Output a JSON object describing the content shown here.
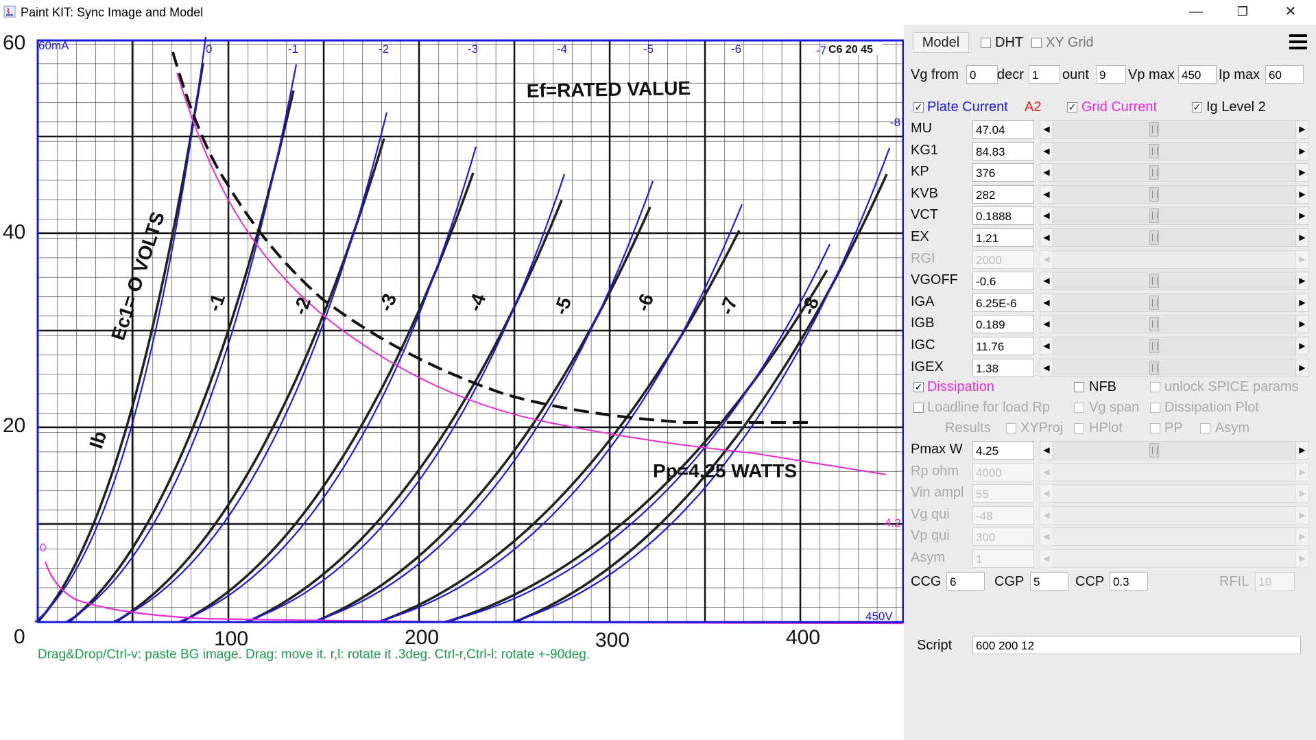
{
  "window": {
    "title": "Paint KIT: Sync Image and Model",
    "minimize": "—",
    "restore": "❐",
    "close": "✕"
  },
  "plot": {
    "y_ticks": [
      "60",
      "40",
      "20",
      "0"
    ],
    "x_ticks": [
      "100",
      "200",
      "300",
      "400"
    ],
    "image_texts": {
      "ef": "Ef=RATED  VALUE",
      "ec": "Ec1= O VOLTS",
      "ib": "Ib",
      "pp": "Pp=4.25  WATTS",
      "tube": "C6 20 45",
      "grid_labels": [
        "-1",
        "-2",
        "-3",
        "-4",
        "-5",
        "-6",
        "-7",
        "-8"
      ]
    },
    "overlay": {
      "top_left": "60mA",
      "curve_labels": [
        "0",
        "-1",
        "-2",
        "-3",
        "-4",
        "-5",
        "-6",
        "-7",
        "-8"
      ],
      "dissipation_label": "4.2",
      "vp_label": "450V",
      "zero_label": "0"
    },
    "hint": "Drag&Drop/Ctrl-v: paste BG image. Drag: move it. r,l: rotate it .3deg. Ctrl-r,Ctrl-l: rotate +-90deg.",
    "colors": {
      "image_curve": "#222222",
      "model_curve": "#1a1ad6",
      "dissipation": "#e52ad6",
      "hint": "#1a9a4a"
    }
  },
  "toolbar": {
    "model_button": "Model",
    "dht": "DHT",
    "dht_checked": false,
    "xy_grid": "XY Grid",
    "xy_grid_checked": false
  },
  "vg_row": {
    "vg_from_label": "Vg from",
    "vg_from": "0",
    "decr_label": "decr",
    "decr": "1",
    "count_label": "ount",
    "count": "9",
    "vp_max_label": "Vp max",
    "vp_max": "450",
    "ip_max_label": "Ip max",
    "ip_max": "60"
  },
  "plot_options": {
    "plate_current": "Plate Current",
    "plate_current_checked": true,
    "a2": "A2",
    "grid_current": "Grid Current",
    "grid_current_checked": true,
    "ig_level": "Ig Level 2",
    "ig_level_checked": true
  },
  "params": [
    {
      "name": "MU",
      "value": "47.04",
      "enabled": true
    },
    {
      "name": "KG1",
      "value": "84.83",
      "enabled": true
    },
    {
      "name": "KP",
      "value": "376",
      "enabled": true
    },
    {
      "name": "KVB",
      "value": "282",
      "enabled": true
    },
    {
      "name": "VCT",
      "value": "0.1888",
      "enabled": true
    },
    {
      "name": "EX",
      "value": "1.21",
      "enabled": true
    },
    {
      "name": "RGI",
      "value": "2000",
      "enabled": false
    },
    {
      "name": "VGOFF",
      "value": "-0.6",
      "enabled": true
    },
    {
      "name": "IGA",
      "value": "6.25E-6",
      "enabled": true
    },
    {
      "name": "IGB",
      "value": "0.189",
      "enabled": true
    },
    {
      "name": "IGC",
      "value": "11.76",
      "enabled": true
    },
    {
      "name": "IGEX",
      "value": "1.38",
      "enabled": true
    }
  ],
  "options": {
    "dissipation": "Dissipation",
    "dissipation_checked": true,
    "nfb": "NFB",
    "unlock": "unlock SPICE params",
    "loadline": "Loadline for load Rp",
    "vg_span": "Vg span",
    "dissipation_plot": "Dissipation Plot",
    "results": "Results",
    "xyproj": "XYProj",
    "hplot": "HPlot",
    "pp": "PP",
    "asym": "Asym"
  },
  "load_params": [
    {
      "name": "Pmax W",
      "value": "4.25",
      "enabled": true
    },
    {
      "name": "Rp ohm",
      "value": "4000",
      "enabled": false
    },
    {
      "name": "Vin ampl",
      "value": "55",
      "enabled": false
    },
    {
      "name": "Vg qui",
      "value": "-48",
      "enabled": false
    },
    {
      "name": "Vp qui",
      "value": "300",
      "enabled": false
    },
    {
      "name": "Asym",
      "value": "1",
      "enabled": false
    }
  ],
  "caps": {
    "ccg_label": "CCG",
    "ccg": "6",
    "cgp_label": "CGP",
    "cgp": "5",
    "ccp_label": "CCP",
    "ccp": "0.3",
    "rfil_label": "RFIL",
    "rfil": "10"
  },
  "script": {
    "label": "Script",
    "value": "600 200 12"
  }
}
